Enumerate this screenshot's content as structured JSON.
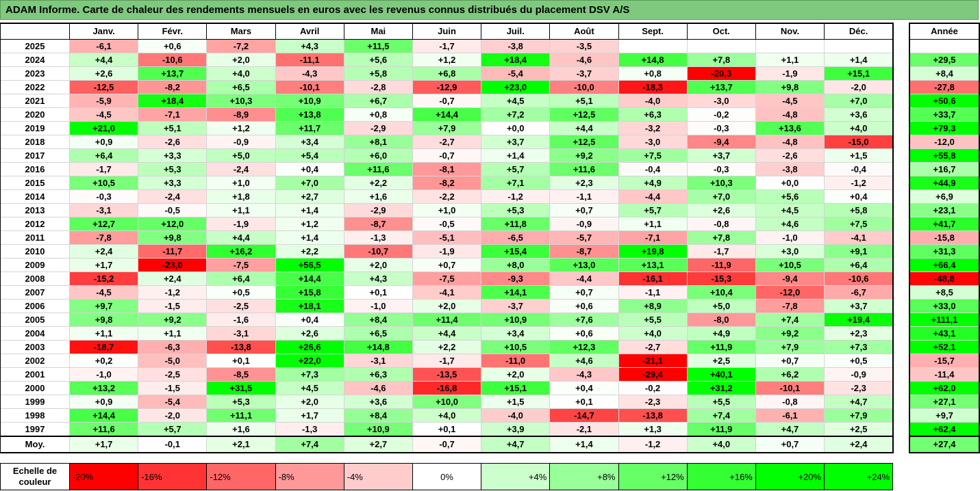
{
  "title": "ADAM Informe. Carte de chaleur des rendements mensuels en euros avec les revenus connus distribués du placement DSV A/S",
  "chart_data": {
    "type": "heatmap",
    "title": "ADAM Informe. Carte de chaleur des rendements mensuels en euros avec les revenus connus distribués du placement DSV A/S",
    "columns": [
      "Janv.",
      "Févr.",
      "Mars",
      "Avril",
      "Mai",
      "Juin",
      "Juil.",
      "Août",
      "Sept.",
      "Oct.",
      "Nov.",
      "Déc."
    ],
    "annual_header": "Année",
    "rows": [
      {
        "year": "2025",
        "values": [
          "-6,1",
          "+0,6",
          "-7,2",
          "+4,3",
          "+11,5",
          "-1,7",
          "-3,8",
          "-3,5",
          "",
          "",
          "",
          ""
        ],
        "annual": ""
      },
      {
        "year": "2024",
        "values": [
          "+4,4",
          "-10,6",
          "+2,0",
          "-11,1",
          "+5,6",
          "+1,2",
          "+18,4",
          "-4,6",
          "+14,8",
          "+7,8",
          "+1,1",
          "+1,4"
        ],
        "annual": "+29,5"
      },
      {
        "year": "2023",
        "values": [
          "+2,6",
          "+13,7",
          "+4,0",
          "-4,3",
          "+5,8",
          "+6,8",
          "-5,4",
          "-3,7",
          "+0,8",
          "-20,3",
          "-1,9",
          "+15,1"
        ],
        "annual": "+8,4"
      },
      {
        "year": "2022",
        "values": [
          "-12,5",
          "-8,2",
          "+6,5",
          "-10,1",
          "-2,8",
          "-12,9",
          "+23,0",
          "-10,0",
          "-18,3",
          "+13,7",
          "+9,8",
          "-2,0"
        ],
        "annual": "-27,8"
      },
      {
        "year": "2021",
        "values": [
          "-5,9",
          "+18,4",
          "+10,3",
          "+10,9",
          "+6,7",
          "-0,7",
          "+4,5",
          "+5,1",
          "-4,0",
          "-3,0",
          "-4,5",
          "+7,0"
        ],
        "annual": "+50,6"
      },
      {
        "year": "2020",
        "values": [
          "-4,5",
          "-7,1",
          "-8,9",
          "+13,8",
          "+0,8",
          "+14,4",
          "+7,2",
          "+12,5",
          "+6,3",
          "-0,2",
          "-4,8",
          "+3,6"
        ],
        "annual": "+33,7"
      },
      {
        "year": "2019",
        "values": [
          "+21,0",
          "+5,1",
          "+1,2",
          "+11,7",
          "-2,9",
          "+7,9",
          "+0,0",
          "+4,4",
          "-3,2",
          "-0,3",
          "+13,6",
          "+4,0"
        ],
        "annual": "+79,3"
      },
      {
        "year": "2018",
        "values": [
          "+0,9",
          "-2,6",
          "-0,9",
          "+3,4",
          "+8,1",
          "-2,7",
          "+3,7",
          "+12,5",
          "-3,0",
          "-9,4",
          "-4,8",
          "-15,0"
        ],
        "annual": "-12,0"
      },
      {
        "year": "2017",
        "values": [
          "+6,4",
          "+3,3",
          "+5,0",
          "+5,4",
          "+6,0",
          "-0,7",
          "+1,4",
          "+9,2",
          "+7,5",
          "+3,7",
          "-2,6",
          "+1,5"
        ],
        "annual": "+55,8"
      },
      {
        "year": "2016",
        "values": [
          "-1,7",
          "+5,3",
          "-2,4",
          "+0,4",
          "+11,6",
          "-8,1",
          "+5,7",
          "+11,6",
          "-0,4",
          "-0,3",
          "-3,8",
          "-0,4"
        ],
        "annual": "+16,7"
      },
      {
        "year": "2015",
        "values": [
          "+10,5",
          "+3,3",
          "+1,0",
          "+7,0",
          "+2,2",
          "-8,2",
          "+7,1",
          "+2,3",
          "+4,9",
          "+10,3",
          "+0,0",
          "-1,2"
        ],
        "annual": "+44,9"
      },
      {
        "year": "2014",
        "values": [
          "-0,3",
          "-2,4",
          "+1,8",
          "+2,7",
          "+1,6",
          "-2,2",
          "-1,2",
          "-1,1",
          "-4,4",
          "+7,0",
          "+5,6",
          "+0,4"
        ],
        "annual": "+6,9"
      },
      {
        "year": "2013",
        "values": [
          "-3,1",
          "-0,5",
          "+1,1",
          "+1,4",
          "-2,9",
          "+1,0",
          "+5,3",
          "+0,7",
          "+5,7",
          "+2,6",
          "+4,5",
          "+5,8"
        ],
        "annual": "+23,1"
      },
      {
        "year": "2012",
        "values": [
          "+12,7",
          "+12,0",
          "-1,9",
          "+1,2",
          "-8,7",
          "-0,5",
          "+11,8",
          "-0,9",
          "+1,1",
          "-0,8",
          "+4,6",
          "+7,5"
        ],
        "annual": "+41,7"
      },
      {
        "year": "2011",
        "values": [
          "-7,8",
          "+9,8",
          "+4,4",
          "+1,4",
          "-1,3",
          "-5,1",
          "-6,5",
          "-5,7",
          "-7,1",
          "+7,8",
          "-1,0",
          "-4,1"
        ],
        "annual": "-15,8"
      },
      {
        "year": "2010",
        "values": [
          "+2,4",
          "-11,7",
          "+16,2",
          "+2,2",
          "-10,7",
          "-1,9",
          "+15,4",
          "-8,7",
          "+19,8",
          "-1,7",
          "+3,0",
          "+9,1"
        ],
        "annual": "+31,3"
      },
      {
        "year": "2009",
        "values": [
          "+1,7",
          "-23,0",
          "-7,5",
          "+56,5",
          "+2,0",
          "+0,7",
          "+8,0",
          "+13,0",
          "+13,1",
          "-11,9",
          "+10,5",
          "+6,4"
        ],
        "annual": "+66,4"
      },
      {
        "year": "2008",
        "values": [
          "-15,2",
          "+2,4",
          "+6,4",
          "+14,4",
          "+4,3",
          "-7,5",
          "-9,3",
          "-4,4",
          "-16,1",
          "-15,3",
          "-9,4",
          "-10,6"
        ],
        "annual": "-48,8"
      },
      {
        "year": "2007",
        "values": [
          "-4,5",
          "-1,2",
          "+0,5",
          "+15,8",
          "+0,1",
          "-4,1",
          "+14,1",
          "+0,7",
          "-1,1",
          "+10,4",
          "-12,0",
          "-6,7"
        ],
        "annual": "+8,5"
      },
      {
        "year": "2006",
        "values": [
          "+9,7",
          "-1,5",
          "-2,5",
          "+18,1",
          "-1,0",
          "+2,0",
          "-3,7",
          "+0,6",
          "+8,9",
          "+5,0",
          "-7,8",
          "+3,7"
        ],
        "annual": "+33,0"
      },
      {
        "year": "2005",
        "values": [
          "+9,8",
          "+9,2",
          "-1,6",
          "+0,4",
          "+8,4",
          "+11,4",
          "+10,9",
          "+7,6",
          "+5,5",
          "-8,0",
          "+7,4",
          "+19,4"
        ],
        "annual": "+111,1"
      },
      {
        "year": "2004",
        "values": [
          "+1,1",
          "+1,1",
          "-3,1",
          "+2,6",
          "+6,5",
          "+4,4",
          "+3,4",
          "+0,6",
          "+4,0",
          "+4,9",
          "+9,2",
          "+2,3"
        ],
        "annual": "+43,1"
      },
      {
        "year": "2003",
        "values": [
          "-18,7",
          "-6,3",
          "-13,8",
          "+26,6",
          "+14,8",
          "+2,2",
          "+10,5",
          "+12,3",
          "-2,7",
          "+11,9",
          "+7,9",
          "+7,3"
        ],
        "annual": "+52,1"
      },
      {
        "year": "2002",
        "values": [
          "+0,2",
          "-5,0",
          "+0,1",
          "+22,0",
          "-3,1",
          "-1,7",
          "-11,0",
          "+4,6",
          "-21,1",
          "+2,5",
          "+0,7",
          "+0,5"
        ],
        "annual": "-15,7"
      },
      {
        "year": "2001",
        "values": [
          "-1,0",
          "-2,5",
          "-8,5",
          "+7,3",
          "+6,3",
          "-13,5",
          "+2,0",
          "-4,3",
          "-29,4",
          "+40,1",
          "+6,2",
          "-0,9"
        ],
        "annual": "-11,4"
      },
      {
        "year": "2000",
        "values": [
          "+13,2",
          "-1,5",
          "+31,5",
          "+4,5",
          "-4,6",
          "-16,8",
          "+15,1",
          "+0,4",
          "-0,2",
          "+31,2",
          "-10,1",
          "-2,3"
        ],
        "annual": "+62,0"
      },
      {
        "year": "1999",
        "values": [
          "+0,9",
          "-5,4",
          "+5,3",
          "+2,0",
          "+3,6",
          "+10,0",
          "+1,5",
          "+0,1",
          "-2,3",
          "+5,5",
          "-0,8",
          "+4,7"
        ],
        "annual": "+27,1"
      },
      {
        "year": "1998",
        "values": [
          "+14,4",
          "-2,0",
          "+11,1",
          "+1,7",
          "+8,4",
          "+4,0",
          "-4,0",
          "-14,7",
          "-13,8",
          "+7,4",
          "-6,1",
          "+7,9"
        ],
        "annual": "+9,7"
      },
      {
        "year": "1997",
        "values": [
          "+11,6",
          "+5,7",
          "+1,6",
          "-1,3",
          "+10,9",
          "+0,1",
          "+3,9",
          "-2,1",
          "+1,3",
          "+11,9",
          "+4,7",
          "+2,5"
        ],
        "annual": "+62,4"
      }
    ],
    "average": {
      "label": "Moy.",
      "values": [
        "+1,7",
        "-0,1",
        "+2,1",
        "+7,4",
        "+2,7",
        "-0,7",
        "+4,7",
        "+1,4",
        "-1,2",
        "+4,0",
        "+0,7",
        "+2,4"
      ],
      "annual": "+27,4"
    },
    "color_scale": {
      "label": "Echelle de couleur",
      "stops": [
        {
          "label": "-20%",
          "value": -20,
          "color": "#ff0000"
        },
        {
          "label": "-16%",
          "value": -16,
          "color": "#ff3333"
        },
        {
          "label": "-12%",
          "value": -12,
          "color": "#ff6666"
        },
        {
          "label": "-8%",
          "value": -8,
          "color": "#ff9999"
        },
        {
          "label": "-4%",
          "value": -4,
          "color": "#ffcccc"
        },
        {
          "label": "0%",
          "value": 0,
          "color": "#ffffff"
        },
        {
          "label": "+4%",
          "value": 4,
          "color": "#ccffcc"
        },
        {
          "label": "+8%",
          "value": 8,
          "color": "#99ff99"
        },
        {
          "label": "+12%",
          "value": 12,
          "color": "#66ff66"
        },
        {
          "label": "+16%",
          "value": 16,
          "color": "#33ff33"
        },
        {
          "label": "+20%",
          "value": 20,
          "color": "#00ff00"
        },
        {
          "label": "+24%",
          "value": 24,
          "color": "#00ff00"
        }
      ]
    }
  }
}
